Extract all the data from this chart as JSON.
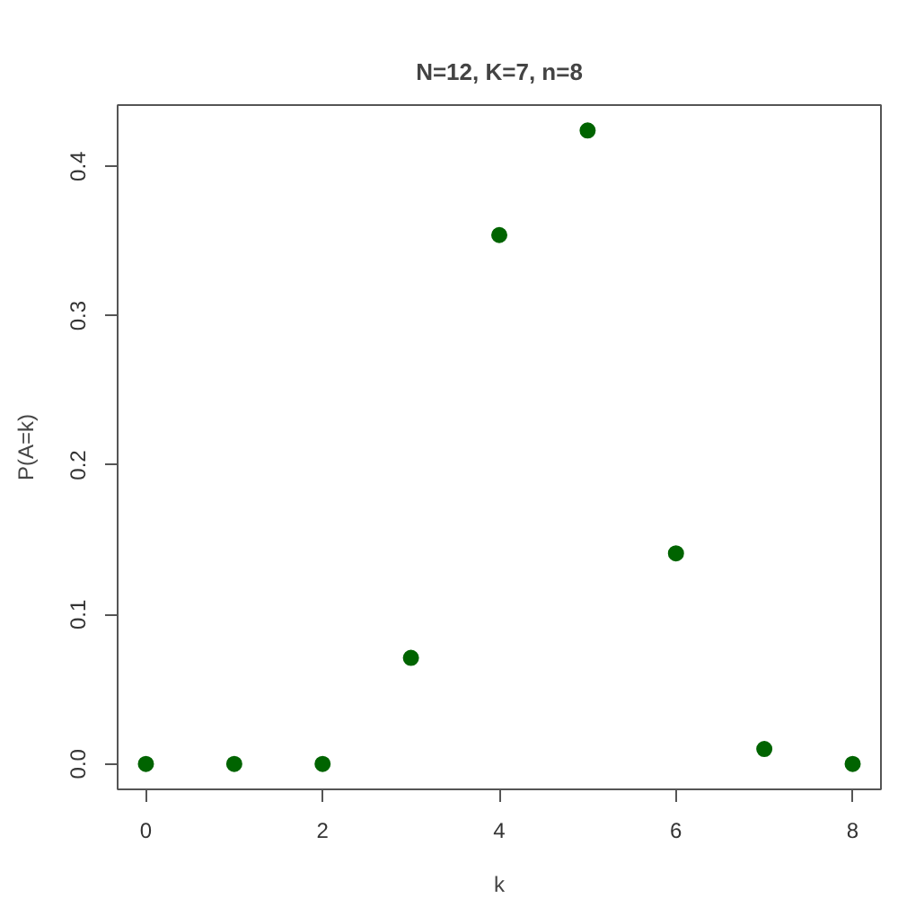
{
  "chart_data": {
    "type": "scatter",
    "title": "N=12, K=7, n=8",
    "xlabel": "k",
    "ylabel": "P(A=k)",
    "x": [
      0,
      1,
      2,
      3,
      4,
      5,
      6,
      7,
      8
    ],
    "series": [
      {
        "color": "#006400",
        "values": [
          0,
          0,
          0,
          0.071,
          0.354,
          0.424,
          0.141,
          0.01,
          0
        ]
      }
    ],
    "xlim": [
      -0.32,
      8.32
    ],
    "ylim": [
      -0.017,
      0.441
    ],
    "xticks": [
      0,
      2,
      4,
      6,
      8
    ],
    "yticks": [
      {
        "value": 0,
        "label": "0.0"
      },
      0.1,
      0.2,
      0.3,
      0.4
    ],
    "grid": false,
    "marker": "circle"
  }
}
